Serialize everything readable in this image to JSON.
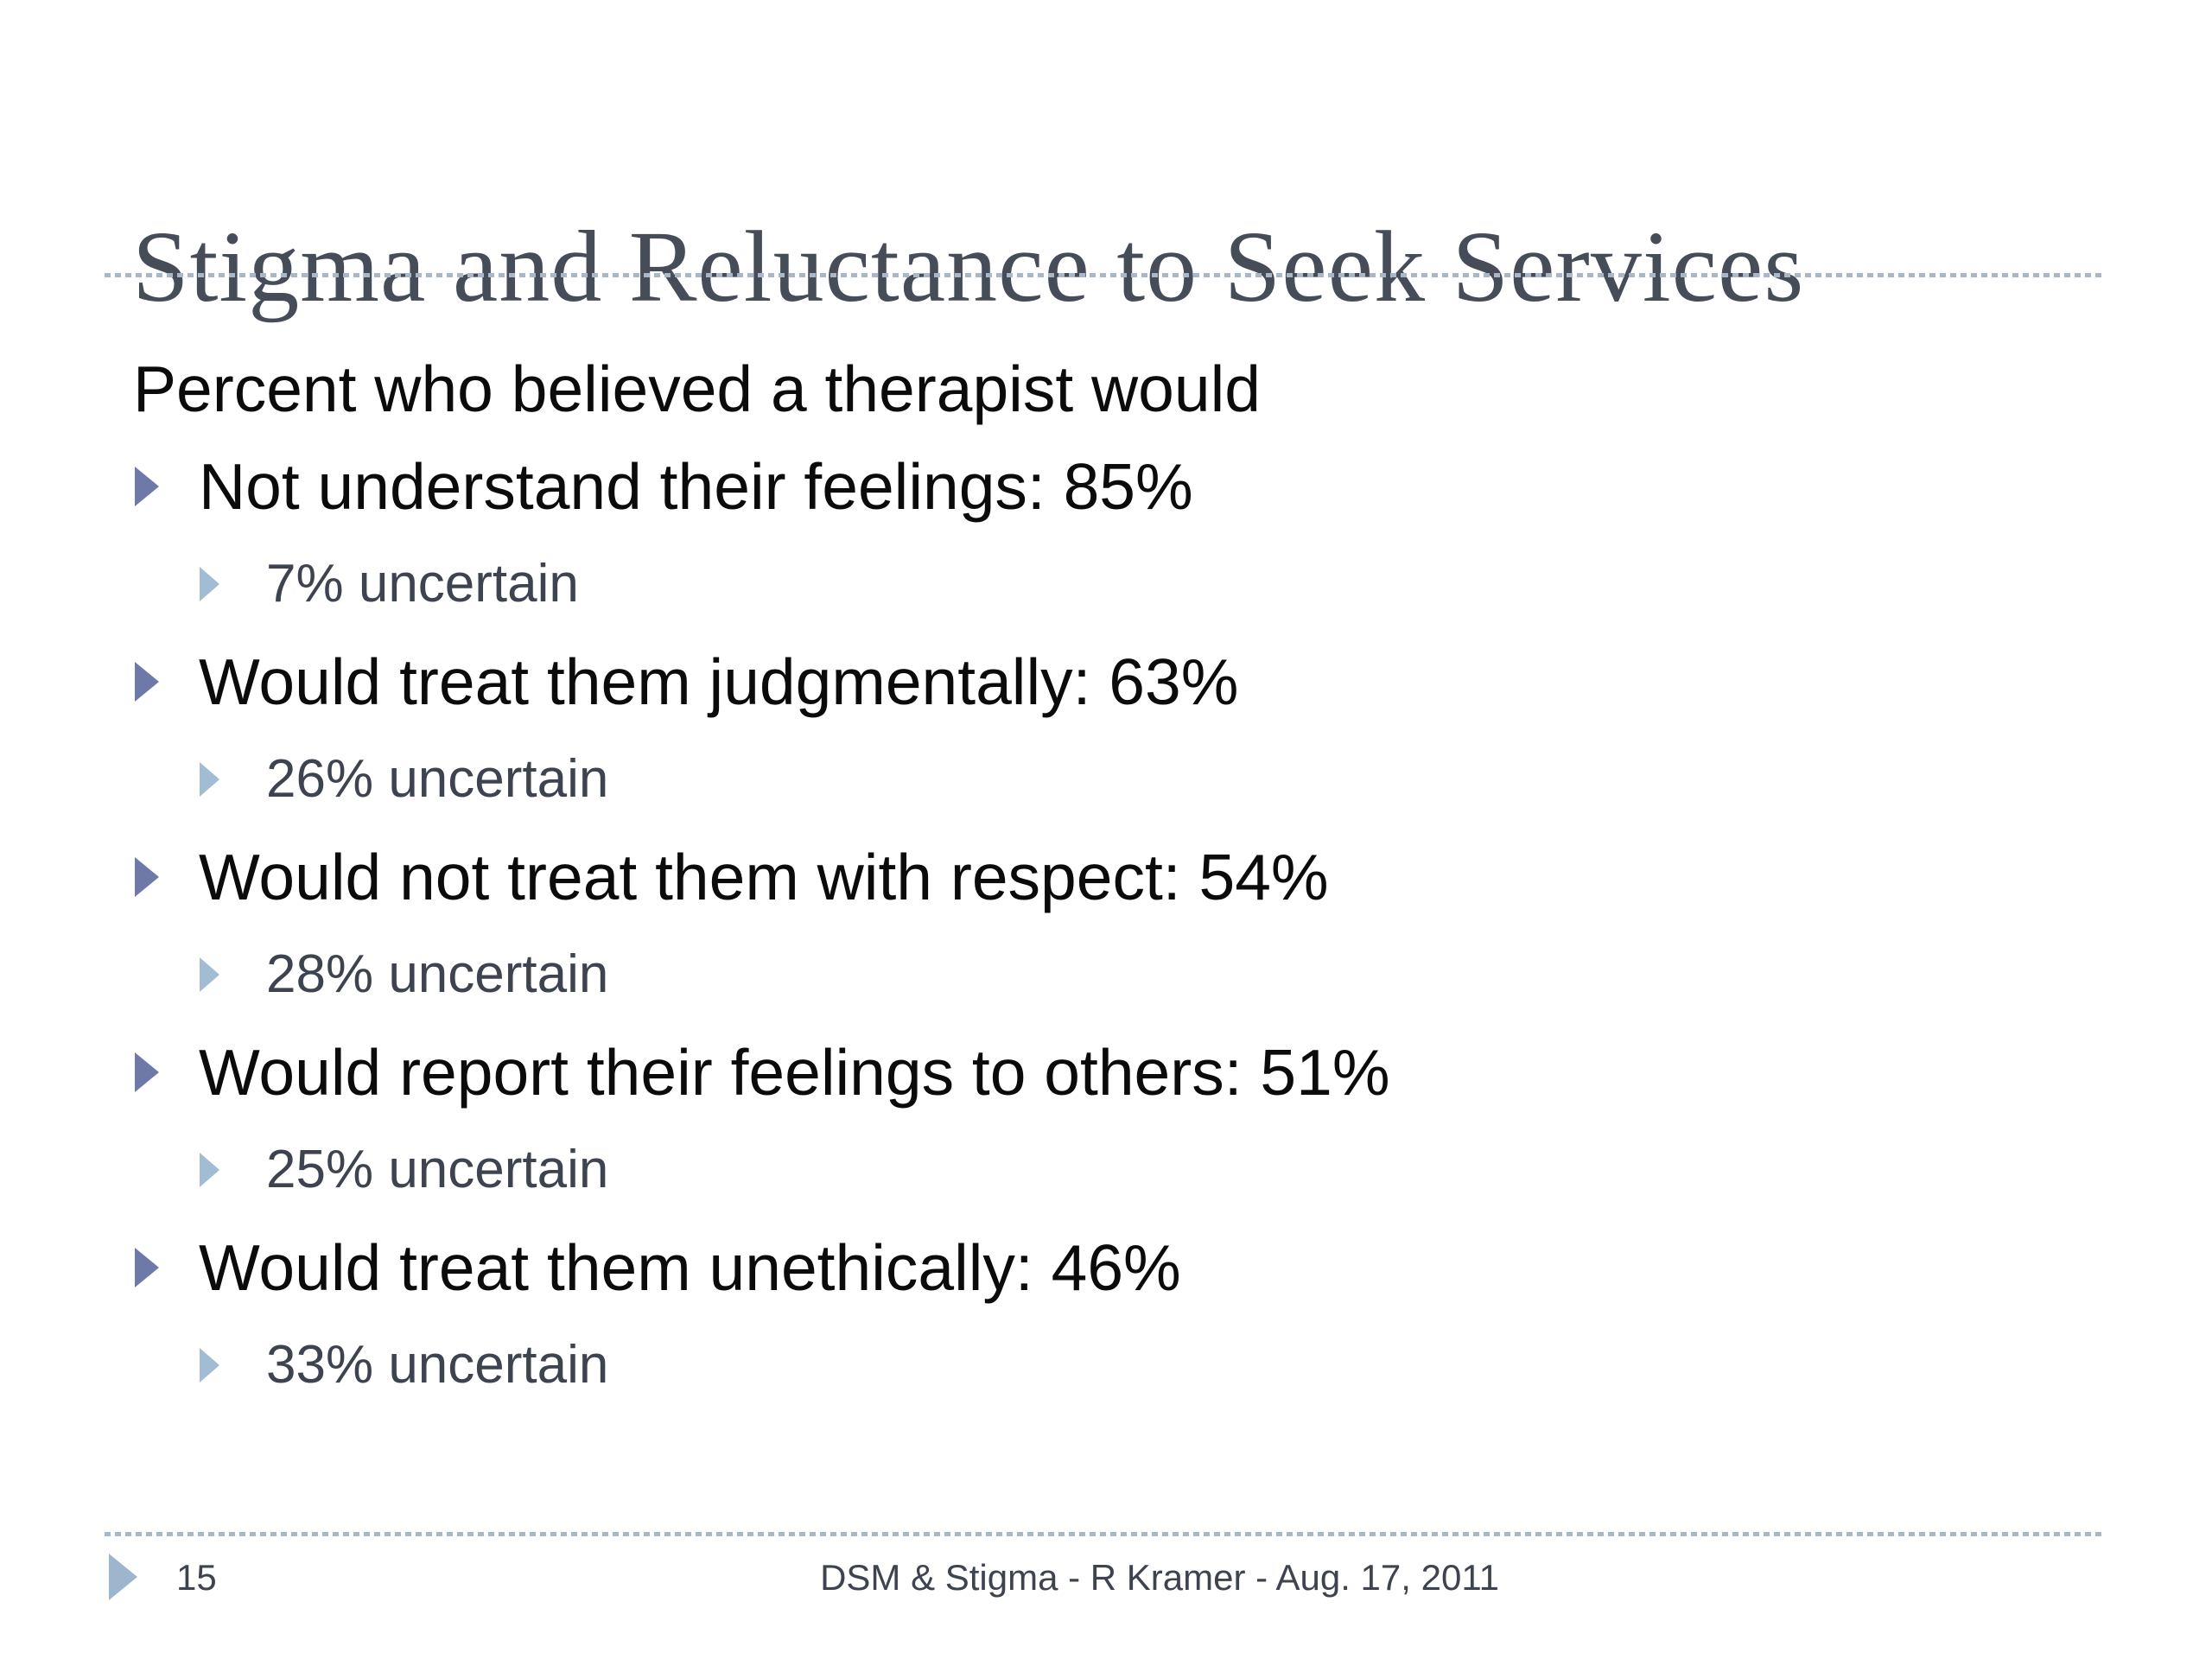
{
  "slide": {
    "title": "Stigma and Reluctance to Seek Services",
    "intro": "Percent who believed a therapist would",
    "bullets": [
      {
        "label": "Not understand their feelings: 85%",
        "sub_label": "7% uncertain"
      },
      {
        "label": "Would treat them judgmentally: 63%",
        "sub_label": "26% uncertain"
      },
      {
        "label": "Would not treat them with respect: 54%",
        "sub_label": "28% uncertain"
      },
      {
        "label": "Would report their feelings to others: 51%",
        "sub_label": "25% uncertain"
      },
      {
        "label": "Would treat them unethically: 46%",
        "sub_label": "33% uncertain"
      }
    ],
    "footer": {
      "page_number": "15",
      "caption": "DSM & Stigma - R Kramer - Aug. 17, 2011"
    },
    "colors": {
      "title_text": "#474c59",
      "body_text": "#0b0b0b",
      "sub_text": "#3e4350",
      "bullet_level1": "#6e79a8",
      "bullet_level2": "#a2bcd3",
      "footer_arrow": "#9db6ce",
      "footer_text": "#3e4350",
      "dashed_rule": "#a9b8c9"
    }
  }
}
